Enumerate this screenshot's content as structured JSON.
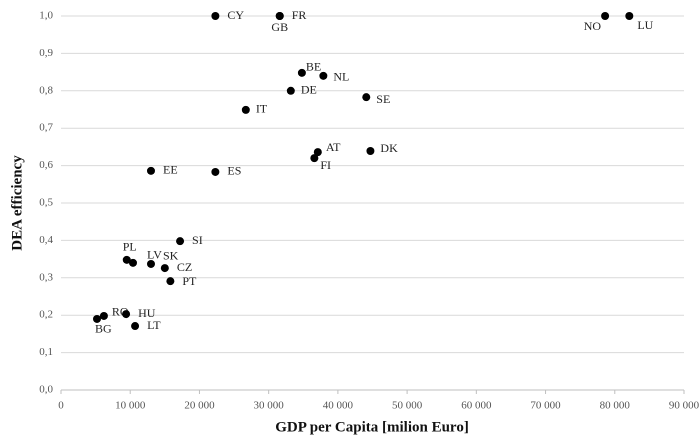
{
  "chart_data": {
    "type": "scatter",
    "xlabel": "GDP per Capita [milion Euro]",
    "ylabel": "DEA efficiency",
    "point_labels": [
      "CY",
      "FR",
      "GB",
      "NO",
      "LU",
      "BE",
      "NL",
      "DE",
      "SE",
      "IT",
      "AT",
      "FI",
      "DK",
      "EE",
      "ES",
      "SI",
      "PL",
      "LV",
      "SK",
      "CZ",
      "PT",
      "RO",
      "HU",
      "BG",
      "LT"
    ],
    "x": [
      22300,
      31600,
      31600,
      78600,
      82100,
      34800,
      37900,
      33200,
      44100,
      26700,
      37100,
      36600,
      44700,
      13000,
      22300,
      17200,
      9500,
      10400,
      13000,
      15000,
      15800,
      6200,
      9400,
      5200,
      10700
    ],
    "values": [
      1.0,
      1.0,
      1.0,
      1.0,
      1.0,
      0.848,
      0.84,
      0.8,
      0.783,
      0.749,
      0.636,
      0.62,
      0.639,
      0.586,
      0.583,
      0.398,
      0.348,
      0.34,
      0.337,
      0.326,
      0.291,
      0.198,
      0.203,
      0.19,
      0.171
    ],
    "color": "#000000",
    "xlim": [
      0,
      90000
    ],
    "xticks": [
      0,
      {
        "value": 10000,
        "label": "10 000"
      },
      {
        "value": 20000,
        "label": "20 000"
      },
      {
        "value": 30000,
        "label": "30 000"
      },
      {
        "value": 40000,
        "label": "40 000"
      },
      {
        "value": 50000,
        "label": "50 000"
      },
      {
        "value": 60000,
        "label": "60 000"
      },
      {
        "value": 70000,
        "label": "70 000"
      },
      {
        "value": 80000,
        "label": "80 000"
      },
      {
        "value": 90000,
        "label": "90 000"
      }
    ],
    "ylim": [
      0,
      1.0
    ],
    "yticks": [
      {
        "value": 0,
        "label": "0,0"
      },
      {
        "value": 0.1,
        "label": "0,1"
      },
      {
        "value": 0.2,
        "label": "0,2"
      },
      {
        "value": 0.3,
        "label": "0,3"
      },
      {
        "value": 0.4,
        "label": "0,4"
      },
      {
        "value": 0.5,
        "label": "0,5"
      },
      {
        "value": 0.6,
        "label": "0,6"
      },
      {
        "value": 0.7,
        "label": "0,7"
      },
      {
        "value": 0.8,
        "label": "0,8"
      },
      {
        "value": 0.9,
        "label": "0,9"
      },
      {
        "value": 1.0,
        "label": "1,0"
      }
    ],
    "grid": true
  }
}
